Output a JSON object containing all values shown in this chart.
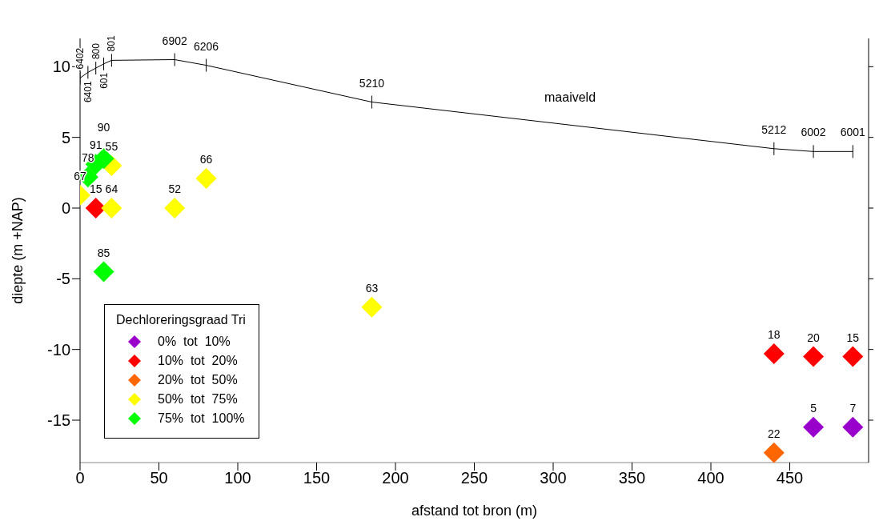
{
  "chart_data": {
    "type": "scatter",
    "xlabel": "afstand tot bron (m)",
    "ylabel": "diepte (m +NAP)",
    "legend_title": "Dechloreringsgraad Tri",
    "xlim": [
      0,
      500
    ],
    "xticks": [
      0,
      50,
      100,
      150,
      200,
      250,
      300,
      350,
      400,
      450
    ],
    "ylim": [
      -18,
      12
    ],
    "yticks": [
      -15,
      -10,
      -5,
      0,
      5,
      10
    ],
    "grid": false,
    "legend": "bottom left",
    "marker": "diamond",
    "annotations": [
      "maaiveld",
      {
        "text": "6402",
        "x": 0,
        "y": 9.2
      },
      {
        "text": "6401",
        "x": 5,
        "y": 9.6
      },
      {
        "text": "800",
        "x": 10,
        "y": 9.9
      },
      {
        "text": "601",
        "x": 15,
        "y": 10.2
      },
      {
        "text": "801",
        "x": 20,
        "y": 10.45
      },
      {
        "text": "6902",
        "x": 60,
        "y": 10.5
      },
      {
        "text": "6206",
        "x": 80,
        "y": 10.1
      },
      {
        "text": "5210",
        "x": 185,
        "y": 7.5
      },
      {
        "text": "5212",
        "x": 440,
        "y": 4.2
      },
      {
        "text": "6002",
        "x": 465,
        "y": 4.0
      },
      {
        "text": "6001",
        "x": 490,
        "y": 4.0
      },
      {
        "text": "5",
        "x": 465,
        "y": -15.5
      },
      {
        "text": "7",
        "x": 490,
        "y": -15.5
      },
      {
        "text": "15",
        "x": 10,
        "y": 0
      },
      {
        "text": "18",
        "x": 440,
        "y": -10.3
      },
      {
        "text": "20",
        "x": 465,
        "y": -10.5
      },
      {
        "text": "15",
        "x": 490,
        "y": -10.5
      },
      {
        "text": "22",
        "x": 440,
        "y": -17.3
      },
      {
        "text": "67",
        "x": 0,
        "y": 0.9
      },
      {
        "text": "55",
        "x": 20,
        "y": 3
      },
      {
        "text": "64",
        "x": 20,
        "y": 0
      },
      {
        "text": "52",
        "x": 60,
        "y": 0
      },
      {
        "text": "66",
        "x": 80,
        "y": 2.1
      },
      {
        "text": "63",
        "x": 185,
        "y": -7
      },
      {
        "text": "78",
        "x": 5,
        "y": 2.2
      },
      {
        "text": "91",
        "x": 10,
        "y": 3.1
      },
      {
        "text": "90",
        "x": 15,
        "y": 3.5
      },
      {
        "text": "85",
        "x": 15,
        "y": -4.5
      }
    ],
    "series": [
      {
        "type": "line",
        "color": "#000000",
        "marker": "none",
        "x": [
          0,
          5,
          10,
          15,
          20,
          60,
          80,
          185,
          440,
          465,
          490
        ],
        "values": [
          9.2,
          9.6,
          9.9,
          10.2,
          10.45,
          10.5,
          10.1,
          7.5,
          4.2,
          4.0,
          4.0
        ]
      },
      {
        "name": "0%  tot  10%",
        "color": "#9900cc",
        "x": [
          465,
          490
        ],
        "values": [
          -15.5,
          -15.5
        ]
      },
      {
        "name": "10%  tot  20%",
        "color": "#ff0000",
        "x": [
          10,
          440,
          465,
          490
        ],
        "values": [
          0,
          -10.3,
          -10.5,
          -10.5
        ]
      },
      {
        "name": "20%  tot  50%",
        "color": "#ff6600",
        "x": [
          440
        ],
        "values": [
          -17.3
        ]
      },
      {
        "name": "50%  tot  75%",
        "color": "#ffff00",
        "x": [
          0,
          20,
          20,
          60,
          80,
          185
        ],
        "values": [
          0.9,
          3,
          0,
          0,
          2.1,
          -7
        ]
      },
      {
        "name": "75%  tot  100%",
        "color": "#00ff00",
        "x": [
          5,
          10,
          15,
          15
        ],
        "values": [
          2.2,
          3.1,
          3.5,
          -4.5
        ]
      }
    ]
  }
}
